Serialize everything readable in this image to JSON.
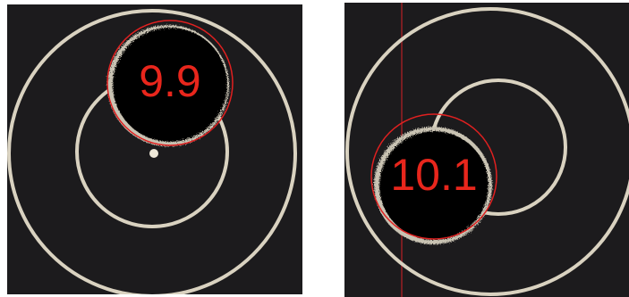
{
  "panels": [
    {
      "score": "9.9"
    },
    {
      "score": "10.1"
    }
  ]
}
